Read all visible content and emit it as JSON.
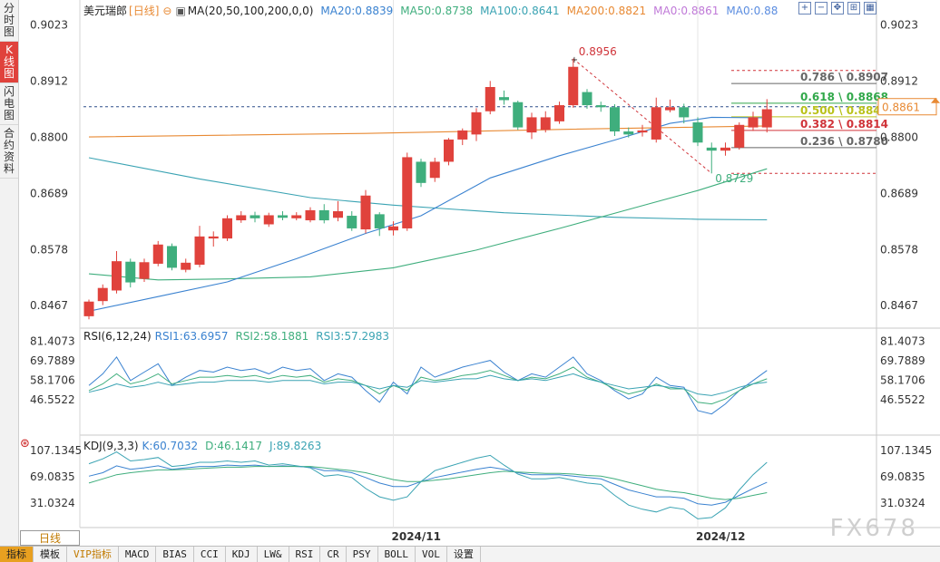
{
  "sidebar": {
    "items": [
      {
        "label": "分时图",
        "chars": [
          "分",
          "时",
          "图"
        ],
        "active": false
      },
      {
        "label": "K线图",
        "chars": [
          "K",
          "线",
          "图"
        ],
        "active": true
      },
      {
        "label": "闪电图",
        "chars": [
          "闪",
          "电",
          "图"
        ],
        "active": false
      },
      {
        "label": "合约资料",
        "chars": [
          "合",
          "约",
          "资",
          "料"
        ],
        "active": false
      }
    ]
  },
  "header": {
    "symbol": "美元瑞郎",
    "period_tag": "[日线]",
    "ma_label": "MA(20,50,100,200,0,0)",
    "ma_values": [
      {
        "text": "MA20:0.8839",
        "color": "#3a82d0"
      },
      {
        "text": "MA50:0.8738",
        "color": "#3fae7d"
      },
      {
        "text": "MA100:0.8641",
        "color": "#3aa3b3"
      },
      {
        "text": "MA200:0.8821",
        "color": "#e88a34"
      },
      {
        "text": "MA0:0.8861",
        "color": "#c07ad8"
      },
      {
        "text": "MA0:0.88",
        "color": "#5b8de0"
      }
    ]
  },
  "top_icons": [
    "zoom-icon",
    "shrink-icon",
    "move-icon",
    "fit-icon",
    "grid-icon"
  ],
  "rsi": {
    "label": "RSI(6,12,24)",
    "values": [
      {
        "text": "RSI1:63.6957",
        "color": "#3a82d0"
      },
      {
        "text": "RSI2:58.1881",
        "color": "#3fae7d"
      },
      {
        "text": "RSI3:57.2983",
        "color": "#3aa3b3"
      }
    ]
  },
  "kdj": {
    "label": "KDJ(9,3,3)",
    "values": [
      {
        "text": "K:60.7032",
        "color": "#3a82d0"
      },
      {
        "text": "D:46.1417",
        "color": "#3fae7d"
      },
      {
        "text": "J:89.8263",
        "color": "#3aa3b3"
      }
    ]
  },
  "bottom_tabs": [
    "指标",
    "模板",
    "VIP指标",
    "MACD",
    "BIAS",
    "CCI",
    "KDJ",
    "LW&",
    "RSI",
    "CR",
    "PSY",
    "BOLL",
    "VOL",
    "设置"
  ],
  "period_button": "日线",
  "watermark": "FX678",
  "chart_data": {
    "type": "candlestick",
    "price_axis": {
      "ticks": [
        0.9023,
        0.8912,
        0.88,
        0.8689,
        0.8578,
        0.8467
      ],
      "range": [
        0.8435,
        0.9058
      ]
    },
    "rsi_axis": {
      "ticks": [
        81.4073,
        69.7889,
        58.1706,
        46.5522
      ],
      "range": [
        26.5,
        86.0
      ]
    },
    "kdj_axis": {
      "ticks": [
        107.1345,
        69.0835,
        31.0324
      ],
      "range": [
        -2.0,
        119.0
      ]
    },
    "x_labels": [
      {
        "index": 22,
        "text": "2024/11"
      },
      {
        "index": 44,
        "text": "2024/12"
      }
    ],
    "current_price": 0.8861,
    "candles": [
      {
        "o": 0.8446,
        "c": 0.8475,
        "h": 0.8479,
        "l": 0.844
      },
      {
        "o": 0.8476,
        "c": 0.8502,
        "h": 0.8509,
        "l": 0.8468
      },
      {
        "o": 0.8497,
        "c": 0.8555,
        "h": 0.8575,
        "l": 0.8491
      },
      {
        "o": 0.8554,
        "c": 0.8513,
        "h": 0.856,
        "l": 0.8503
      },
      {
        "o": 0.852,
        "c": 0.8553,
        "h": 0.856,
        "l": 0.8514
      },
      {
        "o": 0.855,
        "c": 0.8588,
        "h": 0.8595,
        "l": 0.8545
      },
      {
        "o": 0.8585,
        "c": 0.8542,
        "h": 0.859,
        "l": 0.8537
      },
      {
        "o": 0.8538,
        "c": 0.8552,
        "h": 0.856,
        "l": 0.8533
      },
      {
        "o": 0.8548,
        "c": 0.8604,
        "h": 0.8625,
        "l": 0.8543
      },
      {
        "o": 0.86,
        "c": 0.8604,
        "h": 0.8614,
        "l": 0.8584
      },
      {
        "o": 0.86,
        "c": 0.864,
        "h": 0.8646,
        "l": 0.8595
      },
      {
        "o": 0.8636,
        "c": 0.8646,
        "h": 0.8654,
        "l": 0.8631
      },
      {
        "o": 0.8646,
        "c": 0.864,
        "h": 0.8653,
        "l": 0.8632
      },
      {
        "o": 0.8628,
        "c": 0.8646,
        "h": 0.8651,
        "l": 0.8623
      },
      {
        "o": 0.8646,
        "c": 0.8641,
        "h": 0.8654,
        "l": 0.8636
      },
      {
        "o": 0.864,
        "c": 0.8646,
        "h": 0.8652,
        "l": 0.8636
      },
      {
        "o": 0.8636,
        "c": 0.8656,
        "h": 0.8662,
        "l": 0.8632
      },
      {
        "o": 0.8656,
        "c": 0.8636,
        "h": 0.8668,
        "l": 0.863
      },
      {
        "o": 0.8641,
        "c": 0.8654,
        "h": 0.8674,
        "l": 0.8634
      },
      {
        "o": 0.8645,
        "c": 0.862,
        "h": 0.8654,
        "l": 0.8615
      },
      {
        "o": 0.8618,
        "c": 0.8685,
        "h": 0.8696,
        "l": 0.861
      },
      {
        "o": 0.8648,
        "c": 0.862,
        "h": 0.8652,
        "l": 0.8605
      },
      {
        "o": 0.8616,
        "c": 0.8624,
        "h": 0.8634,
        "l": 0.8606
      },
      {
        "o": 0.862,
        "c": 0.8761,
        "h": 0.877,
        "l": 0.8615
      },
      {
        "o": 0.8752,
        "c": 0.871,
        "h": 0.8758,
        "l": 0.8702
      },
      {
        "o": 0.872,
        "c": 0.8752,
        "h": 0.876,
        "l": 0.8712
      },
      {
        "o": 0.8752,
        "c": 0.8796,
        "h": 0.8799,
        "l": 0.8745
      },
      {
        "o": 0.8796,
        "c": 0.8814,
        "h": 0.8818,
        "l": 0.8785
      },
      {
        "o": 0.8806,
        "c": 0.885,
        "h": 0.8858,
        "l": 0.8793
      },
      {
        "o": 0.8852,
        "c": 0.89,
        "h": 0.8912,
        "l": 0.8846
      },
      {
        "o": 0.888,
        "c": 0.8874,
        "h": 0.8893,
        "l": 0.8865
      },
      {
        "o": 0.887,
        "c": 0.882,
        "h": 0.8873,
        "l": 0.8815
      },
      {
        "o": 0.881,
        "c": 0.884,
        "h": 0.8849,
        "l": 0.8797
      },
      {
        "o": 0.8815,
        "c": 0.884,
        "h": 0.8852,
        "l": 0.881
      },
      {
        "o": 0.8832,
        "c": 0.8864,
        "h": 0.8871,
        "l": 0.8827
      },
      {
        "o": 0.8864,
        "c": 0.894,
        "h": 0.8956,
        "l": 0.8859
      },
      {
        "o": 0.889,
        "c": 0.8864,
        "h": 0.8896,
        "l": 0.8857
      },
      {
        "o": 0.8864,
        "c": 0.886,
        "h": 0.8871,
        "l": 0.8851
      },
      {
        "o": 0.886,
        "c": 0.8812,
        "h": 0.8866,
        "l": 0.8803
      },
      {
        "o": 0.8812,
        "c": 0.8806,
        "h": 0.882,
        "l": 0.88
      },
      {
        "o": 0.881,
        "c": 0.8814,
        "h": 0.8825,
        "l": 0.8802
      },
      {
        "o": 0.8796,
        "c": 0.886,
        "h": 0.8879,
        "l": 0.879
      },
      {
        "o": 0.8854,
        "c": 0.886,
        "h": 0.8875,
        "l": 0.885
      },
      {
        "o": 0.886,
        "c": 0.884,
        "h": 0.8867,
        "l": 0.8828
      },
      {
        "o": 0.883,
        "c": 0.879,
        "h": 0.884,
        "l": 0.8783
      },
      {
        "o": 0.878,
        "c": 0.8774,
        "h": 0.879,
        "l": 0.8729
      },
      {
        "o": 0.8774,
        "c": 0.878,
        "h": 0.879,
        "l": 0.8764
      },
      {
        "o": 0.878,
        "c": 0.8825,
        "h": 0.883,
        "l": 0.8776
      },
      {
        "o": 0.882,
        "c": 0.884,
        "h": 0.8851,
        "l": 0.8813
      },
      {
        "o": 0.882,
        "c": 0.8856,
        "h": 0.8876,
        "l": 0.881
      }
    ],
    "ma_series": [
      {
        "name": "MA200",
        "color": "#e88a34",
        "points": [
          [
            0,
            0.8801
          ],
          [
            20,
            0.8808
          ],
          [
            34,
            0.8816
          ],
          [
            49,
            0.8823
          ]
        ]
      },
      {
        "name": "MA100",
        "color": "#3aa3b3",
        "points": [
          [
            0,
            0.876
          ],
          [
            8,
            0.8718
          ],
          [
            16,
            0.8681
          ],
          [
            22,
            0.8666
          ],
          [
            30,
            0.8651
          ],
          [
            38,
            0.8642
          ],
          [
            44,
            0.8638
          ],
          [
            49,
            0.8637
          ]
        ]
      },
      {
        "name": "MA50",
        "color": "#3fae7d",
        "points": [
          [
            0,
            0.853
          ],
          [
            5,
            0.8518
          ],
          [
            10,
            0.852
          ],
          [
            16,
            0.8524
          ],
          [
            22,
            0.8542
          ],
          [
            28,
            0.8577
          ],
          [
            34,
            0.862
          ],
          [
            40,
            0.8665
          ],
          [
            44,
            0.8695
          ],
          [
            49,
            0.8738
          ]
        ]
      },
      {
        "name": "MA20",
        "color": "#3a82d0",
        "points": [
          [
            0,
            0.8456
          ],
          [
            5,
            0.8485
          ],
          [
            10,
            0.8514
          ],
          [
            15,
            0.856
          ],
          [
            20,
            0.861
          ],
          [
            24,
            0.8645
          ],
          [
            29,
            0.872
          ],
          [
            34,
            0.8764
          ],
          [
            38,
            0.8795
          ],
          [
            42,
            0.8828
          ],
          [
            45,
            0.884
          ],
          [
            49,
            0.8839
          ]
        ]
      }
    ],
    "fibonacci": {
      "high": {
        "value": 0.8956,
        "label": "0.8956",
        "index": 35
      },
      "low": {
        "value": 0.8729,
        "label": "0.8729",
        "index": 45
      },
      "levels": [
        {
          "label": "0.786 \\ 0.8907",
          "value": 0.8907,
          "color": "#666666"
        },
        {
          "label": "0.618 \\ 0.8868",
          "value": 0.8868,
          "color": "#31a84a"
        },
        {
          "label": "0.500 \\ 0.8841",
          "value": 0.8841,
          "color": "#b9c21a"
        },
        {
          "label": "0.382 \\ 0.8814",
          "value": 0.8814,
          "color": "#d0343a"
        },
        {
          "label": "0.236 \\ 0.8780",
          "value": 0.878,
          "color": "#666666"
        }
      ]
    },
    "rsi_series": [
      {
        "name": "RSI1",
        "color": "#3a82d0",
        "values": [
          55,
          62,
          72,
          58,
          63,
          68,
          55,
          60,
          64,
          63,
          66,
          64,
          65,
          62,
          66,
          64,
          65,
          58,
          62,
          60,
          52,
          45,
          57,
          50,
          66,
          60,
          63,
          66,
          68,
          70,
          63,
          58,
          62,
          60,
          66,
          72,
          62,
          58,
          52,
          47,
          50,
          60,
          55,
          54,
          40,
          38,
          44,
          52,
          58,
          64
        ]
      },
      {
        "name": "RSI2",
        "color": "#3fae7d",
        "values": [
          52,
          56,
          62,
          56,
          58,
          62,
          56,
          58,
          60,
          60,
          61,
          60,
          61,
          59,
          61,
          60,
          61,
          57,
          59,
          58,
          55,
          50,
          55,
          52,
          60,
          58,
          59,
          61,
          62,
          64,
          61,
          58,
          60,
          59,
          62,
          66,
          60,
          57,
          53,
          50,
          52,
          56,
          53,
          53,
          45,
          44,
          47,
          52,
          56,
          59
        ]
      },
      {
        "name": "RSI3",
        "color": "#3aa3b3",
        "values": [
          51,
          53,
          56,
          54,
          55,
          57,
          55,
          56,
          57,
          57,
          58,
          58,
          58,
          57,
          58,
          58,
          58,
          56,
          57,
          57,
          55,
          53,
          55,
          54,
          58,
          57,
          58,
          59,
          59,
          61,
          59,
          58,
          59,
          58,
          60,
          62,
          59,
          57,
          55,
          53,
          54,
          55,
          54,
          53,
          50,
          49,
          51,
          54,
          56,
          57
        ]
      }
    ],
    "kdj_series": [
      {
        "name": "K",
        "color": "#3a82d0",
        "values": [
          70,
          75,
          85,
          80,
          82,
          85,
          80,
          82,
          84,
          84,
          86,
          85,
          86,
          84,
          85,
          84,
          83,
          78,
          78,
          75,
          68,
          60,
          55,
          55,
          62,
          68,
          72,
          76,
          80,
          83,
          80,
          75,
          72,
          72,
          72,
          70,
          68,
          66,
          58,
          50,
          45,
          40,
          40,
          38,
          30,
          28,
          32,
          42,
          52,
          61
        ]
      },
      {
        "name": "D",
        "color": "#3fae7d",
        "values": [
          60,
          66,
          72,
          75,
          77,
          79,
          79,
          80,
          81,
          82,
          83,
          83,
          84,
          84,
          84,
          84,
          84,
          82,
          80,
          78,
          75,
          70,
          65,
          62,
          62,
          64,
          66,
          69,
          72,
          75,
          77,
          76,
          75,
          74,
          74,
          73,
          71,
          70,
          66,
          61,
          56,
          51,
          48,
          46,
          42,
          38,
          36,
          38,
          42,
          46
        ]
      },
      {
        "name": "J",
        "color": "#3aa3b3",
        "values": [
          88,
          95,
          105,
          92,
          94,
          97,
          84,
          86,
          90,
          90,
          92,
          90,
          92,
          86,
          88,
          85,
          82,
          70,
          72,
          68,
          52,
          40,
          35,
          40,
          62,
          78,
          84,
          90,
          96,
          100,
          86,
          73,
          66,
          66,
          68,
          64,
          60,
          58,
          42,
          28,
          22,
          18,
          25,
          22,
          8,
          10,
          24,
          50,
          72,
          90
        ]
      }
    ]
  }
}
